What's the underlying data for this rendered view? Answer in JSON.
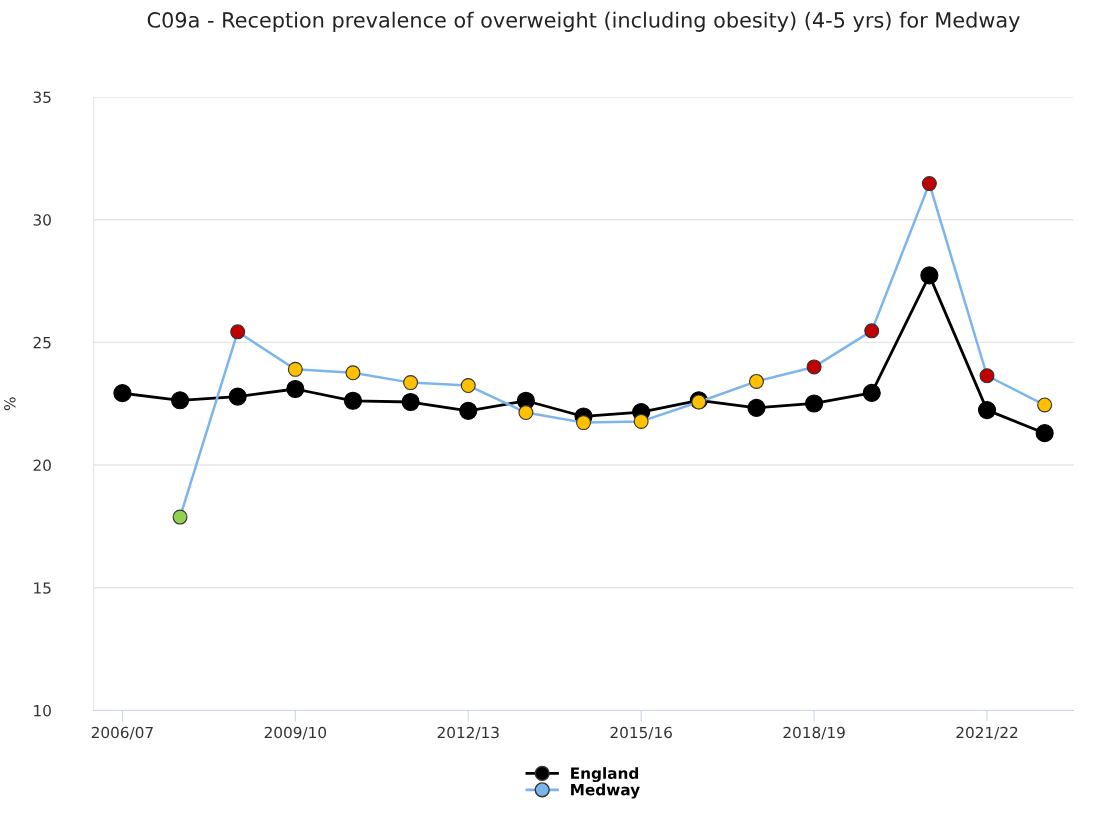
{
  "chart_data": {
    "type": "line",
    "title": "C09a - Reception prevalence of overweight (including obesity) (4-5 yrs) for Medway",
    "ylabel": "%",
    "categories": [
      "2006/07",
      null,
      null,
      "2009/10",
      null,
      null,
      "2012/13",
      null,
      null,
      "2015/16",
      null,
      null,
      "2018/19",
      null,
      null,
      "2021/22",
      null
    ],
    "series": [
      {
        "name": "England",
        "color": "#000000",
        "values": [
          22.93,
          22.64,
          22.79,
          23.1,
          22.62,
          22.57,
          22.21,
          22.62,
          21.98,
          22.16,
          22.64,
          22.33,
          22.51,
          22.94,
          27.73,
          22.24,
          21.3
        ]
      },
      {
        "name": "Medway",
        "color": "#7cb5ec",
        "values": [
          null,
          17.88,
          25.43,
          23.9,
          23.76,
          23.36,
          23.24,
          22.14,
          21.73,
          21.78,
          22.57,
          23.41,
          24.0,
          25.47,
          31.47,
          23.64,
          22.45
        ],
        "colors": [
          null,
          "#92d050",
          "#c00000",
          "#ffc000",
          "#ffc000",
          "#ffc000",
          "#ffc000",
          "#ffc000",
          "#ffc000",
          "#ffc000",
          "#ffc000",
          "#ffc000",
          "#c00000",
          "#c00000",
          "#c00000",
          "#c00000",
          "#ffc000"
        ]
      }
    ],
    "ylim": [
      10,
      35
    ],
    "yticks": [
      10,
      15,
      20,
      25,
      30,
      35
    ],
    "grid": "y",
    "legend": "bottom",
    "marker": "circle"
  }
}
